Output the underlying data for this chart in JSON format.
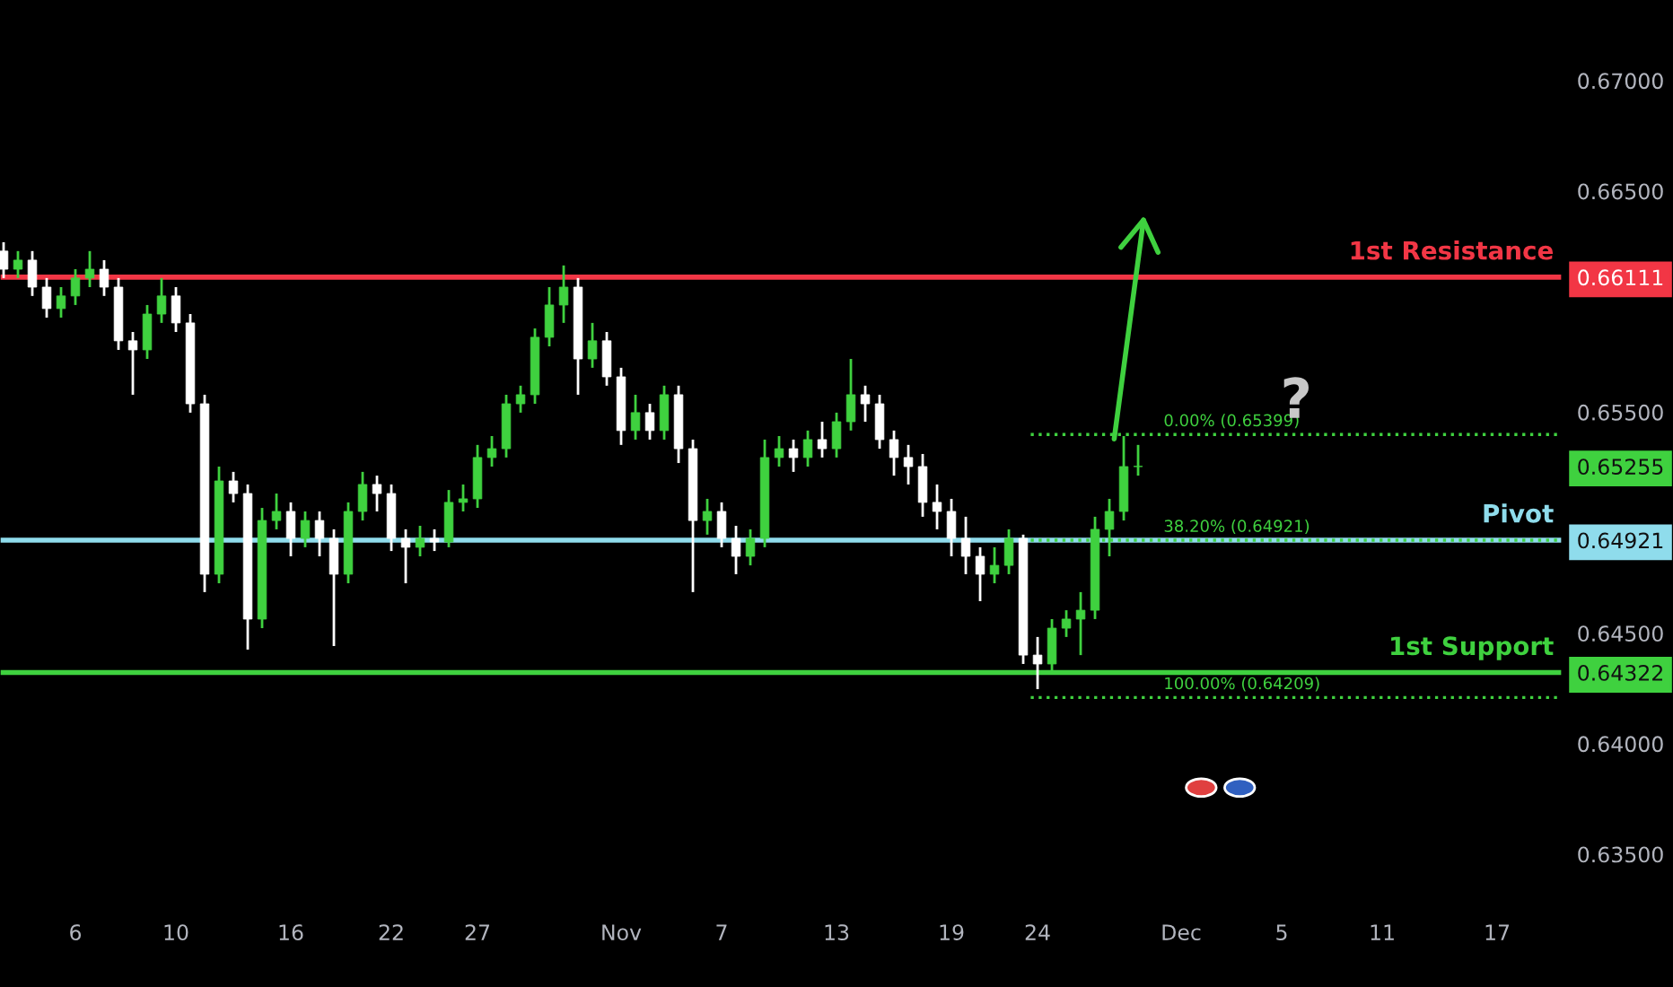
{
  "chart_data": {
    "type": "candlestick",
    "categories": [
      null,
      null,
      null,
      null,
      null,
      "6",
      null,
      null,
      null,
      null,
      null,
      null,
      "10",
      null,
      null,
      null,
      null,
      null,
      null,
      null,
      "16",
      null,
      null,
      null,
      null,
      null,
      null,
      "22",
      null,
      null,
      null,
      null,
      null,
      "27",
      null,
      null,
      null,
      null,
      null,
      null,
      null,
      null,
      null,
      "Nov",
      null,
      null,
      null,
      null,
      null,
      null,
      "7",
      null,
      null,
      null,
      null,
      null,
      null,
      null,
      "13",
      null,
      null,
      null,
      null,
      null,
      null,
      null,
      "19",
      null,
      null,
      null,
      null,
      null,
      "24",
      null,
      null,
      null,
      null,
      null,
      null,
      null,
      null,
      null,
      "Dec",
      null,
      null,
      null,
      null,
      null,
      null,
      "5",
      null,
      null,
      null,
      null,
      null,
      null,
      "11",
      null,
      null,
      null,
      null,
      null,
      null,
      null,
      "17",
      null,
      null,
      null,
      null
    ],
    "ohlc": [
      [
        0.66229,
        0.66269,
        0.66107,
        0.66147
      ],
      [
        0.66147,
        0.66229,
        0.66107,
        0.66188
      ],
      [
        0.66188,
        0.66229,
        0.66026,
        0.66066
      ],
      [
        0.66066,
        0.66107,
        0.65928,
        0.65969
      ],
      [
        0.65969,
        0.66066,
        0.65928,
        0.66026
      ],
      [
        0.66026,
        0.66147,
        0.65985,
        0.66107
      ],
      [
        0.66107,
        0.66229,
        0.66066,
        0.66147
      ],
      [
        0.66147,
        0.66188,
        0.66026,
        0.66066
      ],
      [
        0.66066,
        0.66107,
        0.65782,
        0.65823
      ],
      [
        0.65823,
        0.65863,
        0.65579,
        0.65782
      ],
      [
        0.65782,
        0.65985,
        0.65741,
        0.65944
      ],
      [
        0.65944,
        0.66107,
        0.65904,
        0.66026
      ],
      [
        0.66026,
        0.66066,
        0.65863,
        0.65904
      ],
      [
        0.65904,
        0.65944,
        0.65498,
        0.65538
      ],
      [
        0.65538,
        0.65579,
        0.64686,
        0.64767
      ],
      [
        0.64767,
        0.65254,
        0.64726,
        0.65189
      ],
      [
        0.65189,
        0.6523,
        0.65092,
        0.65132
      ],
      [
        0.65132,
        0.65173,
        0.64426,
        0.64564
      ],
      [
        0.64564,
        0.65067,
        0.64523,
        0.6501
      ],
      [
        0.6501,
        0.65132,
        0.6497,
        0.65051
      ],
      [
        0.65051,
        0.65092,
        0.64848,
        0.64929
      ],
      [
        0.64929,
        0.65051,
        0.64889,
        0.6501
      ],
      [
        0.6501,
        0.65051,
        0.64848,
        0.64929
      ],
      [
        0.64929,
        0.6497,
        0.64442,
        0.64767
      ],
      [
        0.64767,
        0.65092,
        0.64726,
        0.65051
      ],
      [
        0.65051,
        0.6523,
        0.6501,
        0.65173
      ],
      [
        0.65173,
        0.65213,
        0.65051,
        0.65132
      ],
      [
        0.65132,
        0.65173,
        0.64872,
        0.64929
      ],
      [
        0.64929,
        0.6497,
        0.64726,
        0.64889
      ],
      [
        0.64889,
        0.64986,
        0.64848,
        0.64929
      ],
      [
        0.64929,
        0.6497,
        0.64872,
        0.64913
      ],
      [
        0.64913,
        0.65148,
        0.64889,
        0.65092
      ],
      [
        0.65092,
        0.65173,
        0.65051,
        0.65108
      ],
      [
        0.65108,
        0.65352,
        0.65067,
        0.65295
      ],
      [
        0.65295,
        0.65392,
        0.65254,
        0.65335
      ],
      [
        0.65335,
        0.65579,
        0.65295,
        0.65538
      ],
      [
        0.65538,
        0.6562,
        0.65498,
        0.65579
      ],
      [
        0.65579,
        0.65879,
        0.65538,
        0.65839
      ],
      [
        0.65839,
        0.66066,
        0.65798,
        0.65985
      ],
      [
        0.65985,
        0.66164,
        0.65904,
        0.66066
      ],
      [
        0.66066,
        0.66107,
        0.65579,
        0.65741
      ],
      [
        0.65741,
        0.65904,
        0.65701,
        0.65823
      ],
      [
        0.65823,
        0.65863,
        0.6562,
        0.6566
      ],
      [
        0.6566,
        0.65701,
        0.65352,
        0.65417
      ],
      [
        0.65417,
        0.65579,
        0.65376,
        0.65498
      ],
      [
        0.65498,
        0.65538,
        0.65376,
        0.65417
      ],
      [
        0.65417,
        0.6562,
        0.65376,
        0.65579
      ],
      [
        0.65579,
        0.6562,
        0.6527,
        0.65335
      ],
      [
        0.65335,
        0.65376,
        0.64686,
        0.6501
      ],
      [
        0.6501,
        0.65108,
        0.64946,
        0.65051
      ],
      [
        0.65051,
        0.65092,
        0.64889,
        0.64929
      ],
      [
        0.64929,
        0.64986,
        0.64767,
        0.64848
      ],
      [
        0.64848,
        0.6497,
        0.64807,
        0.64929
      ],
      [
        0.64929,
        0.65376,
        0.64889,
        0.65295
      ],
      [
        0.65295,
        0.65392,
        0.65254,
        0.65335
      ],
      [
        0.65335,
        0.65376,
        0.6523,
        0.65295
      ],
      [
        0.65295,
        0.65417,
        0.65254,
        0.65376
      ],
      [
        0.65376,
        0.65457,
        0.65295,
        0.65335
      ],
      [
        0.65335,
        0.65498,
        0.65295,
        0.65457
      ],
      [
        0.65457,
        0.65741,
        0.65417,
        0.65579
      ],
      [
        0.65579,
        0.6562,
        0.65457,
        0.65538
      ],
      [
        0.65538,
        0.65579,
        0.65335,
        0.65376
      ],
      [
        0.65376,
        0.65417,
        0.65213,
        0.65295
      ],
      [
        0.65295,
        0.65352,
        0.65173,
        0.65254
      ],
      [
        0.65254,
        0.65311,
        0.65027,
        0.65092
      ],
      [
        0.65092,
        0.65173,
        0.6497,
        0.65051
      ],
      [
        0.65051,
        0.65108,
        0.64848,
        0.64929
      ],
      [
        0.64929,
        0.65027,
        0.64767,
        0.64848
      ],
      [
        0.64848,
        0.64889,
        0.64645,
        0.64767
      ],
      [
        0.64767,
        0.64889,
        0.64726,
        0.64807
      ],
      [
        0.64807,
        0.6497,
        0.64767,
        0.64929
      ],
      [
        0.64929,
        0.64946,
        0.64361,
        0.64401
      ],
      [
        0.64401,
        0.64483,
        0.64247,
        0.64361
      ],
      [
        0.64361,
        0.64564,
        0.6432,
        0.64523
      ],
      [
        0.64523,
        0.64604,
        0.64483,
        0.64564
      ],
      [
        0.64564,
        0.64686,
        0.64401,
        0.64604
      ],
      [
        0.64604,
        0.65027,
        0.64564,
        0.6497
      ],
      [
        0.6497,
        0.65108,
        0.64848,
        0.65051
      ],
      [
        0.65051,
        0.65392,
        0.6501,
        0.65254
      ],
      [
        0.65254,
        0.65352,
        0.65213,
        0.65255
      ],
      null,
      null,
      null,
      null,
      null,
      null,
      null,
      null,
      null,
      null,
      null,
      null,
      null,
      null,
      null,
      null,
      null,
      null,
      null,
      null,
      null,
      null,
      null,
      null,
      null,
      null,
      null,
      null,
      null
    ],
    "colors": [
      "#ffffff",
      "#3fd13f",
      "#ffffff",
      "#ffffff",
      "#3fd13f",
      "#3fd13f",
      "#3fd13f",
      "#ffffff",
      "#ffffff",
      "#ffffff",
      "#3fd13f",
      "#3fd13f",
      "#ffffff",
      "#ffffff",
      "#ffffff",
      "#3fd13f",
      "#ffffff",
      "#ffffff",
      "#3fd13f",
      "#3fd13f",
      "#ffffff",
      "#3fd13f",
      "#ffffff",
      "#ffffff",
      "#3fd13f",
      "#3fd13f",
      "#ffffff",
      "#ffffff",
      "#ffffff",
      "#3fd13f",
      "#ffffff",
      "#3fd13f",
      "#3fd13f",
      "#3fd13f",
      "#3fd13f",
      "#3fd13f",
      "#3fd13f",
      "#3fd13f",
      "#3fd13f",
      "#3fd13f",
      "#ffffff",
      "#3fd13f",
      "#ffffff",
      "#ffffff",
      "#3fd13f",
      "#ffffff",
      "#3fd13f",
      "#ffffff",
      "#ffffff",
      "#3fd13f",
      "#ffffff",
      "#ffffff",
      "#3fd13f",
      "#3fd13f",
      "#3fd13f",
      "#ffffff",
      "#3fd13f",
      "#ffffff",
      "#3fd13f",
      "#3fd13f",
      "#ffffff",
      "#ffffff",
      "#ffffff",
      "#ffffff",
      "#ffffff",
      "#ffffff",
      "#ffffff",
      "#ffffff",
      "#ffffff",
      "#3fd13f",
      "#3fd13f",
      "#ffffff",
      "#ffffff",
      "#3fd13f",
      "#3fd13f",
      "#3fd13f",
      "#3fd13f",
      "#3fd13f",
      "#3fd13f",
      "#3fd13f",
      null,
      null,
      null,
      null,
      null,
      null,
      null,
      null,
      null,
      null,
      null,
      null,
      null,
      null,
      null,
      null,
      null,
      null,
      null,
      null,
      null,
      null,
      null,
      null,
      null,
      null,
      null,
      null,
      null
    ],
    "ylim": [
      0.63224,
      0.67365
    ],
    "yticks": [
      {
        "value": 0.635,
        "label": "0.63500"
      },
      {
        "value": 0.64,
        "label": "0.64000"
      },
      {
        "value": 0.645,
        "label": "0.64500"
      },
      {
        "value": 0.64322,
        "label": "0.64322"
      },
      {
        "value": 0.64921,
        "label": "0.64921"
      },
      {
        "value": 0.65255,
        "label": "0.65255"
      },
      {
        "value": 0.655,
        "label": "0.65500"
      },
      {
        "value": 0.66111,
        "label": "0.66111"
      },
      {
        "value": 0.665,
        "label": "0.66500"
      },
      {
        "value": 0.67,
        "label": "0.67000"
      }
    ],
    "ref_lines": [
      {
        "axis": "y",
        "value": 0.66111,
        "label": "1st Resistance",
        "color": "#f23645",
        "line_style": "solid"
      },
      {
        "axis": "y",
        "value": 0.64921,
        "label": "Pivot",
        "color": "#8fdcec",
        "line_style": "solid"
      },
      {
        "axis": "y",
        "value": 0.64322,
        "label": "1st Support",
        "color": "#3fd13f",
        "line_style": "solid"
      },
      {
        "axis": "y",
        "value": 0.65399,
        "label": "0.00% (0.65399)",
        "color": "#3fd13f",
        "line_style": "dotted"
      },
      {
        "axis": "y",
        "value": 0.64921,
        "label": "38.20% (0.64921)",
        "color": "#3fd13f",
        "line_style": "dotted"
      },
      {
        "axis": "y",
        "value": 0.64209,
        "label": "100.00% (0.64209)",
        "color": "#3fd13f",
        "line_style": "dotted"
      }
    ],
    "annotations": [
      "?"
    ]
  }
}
